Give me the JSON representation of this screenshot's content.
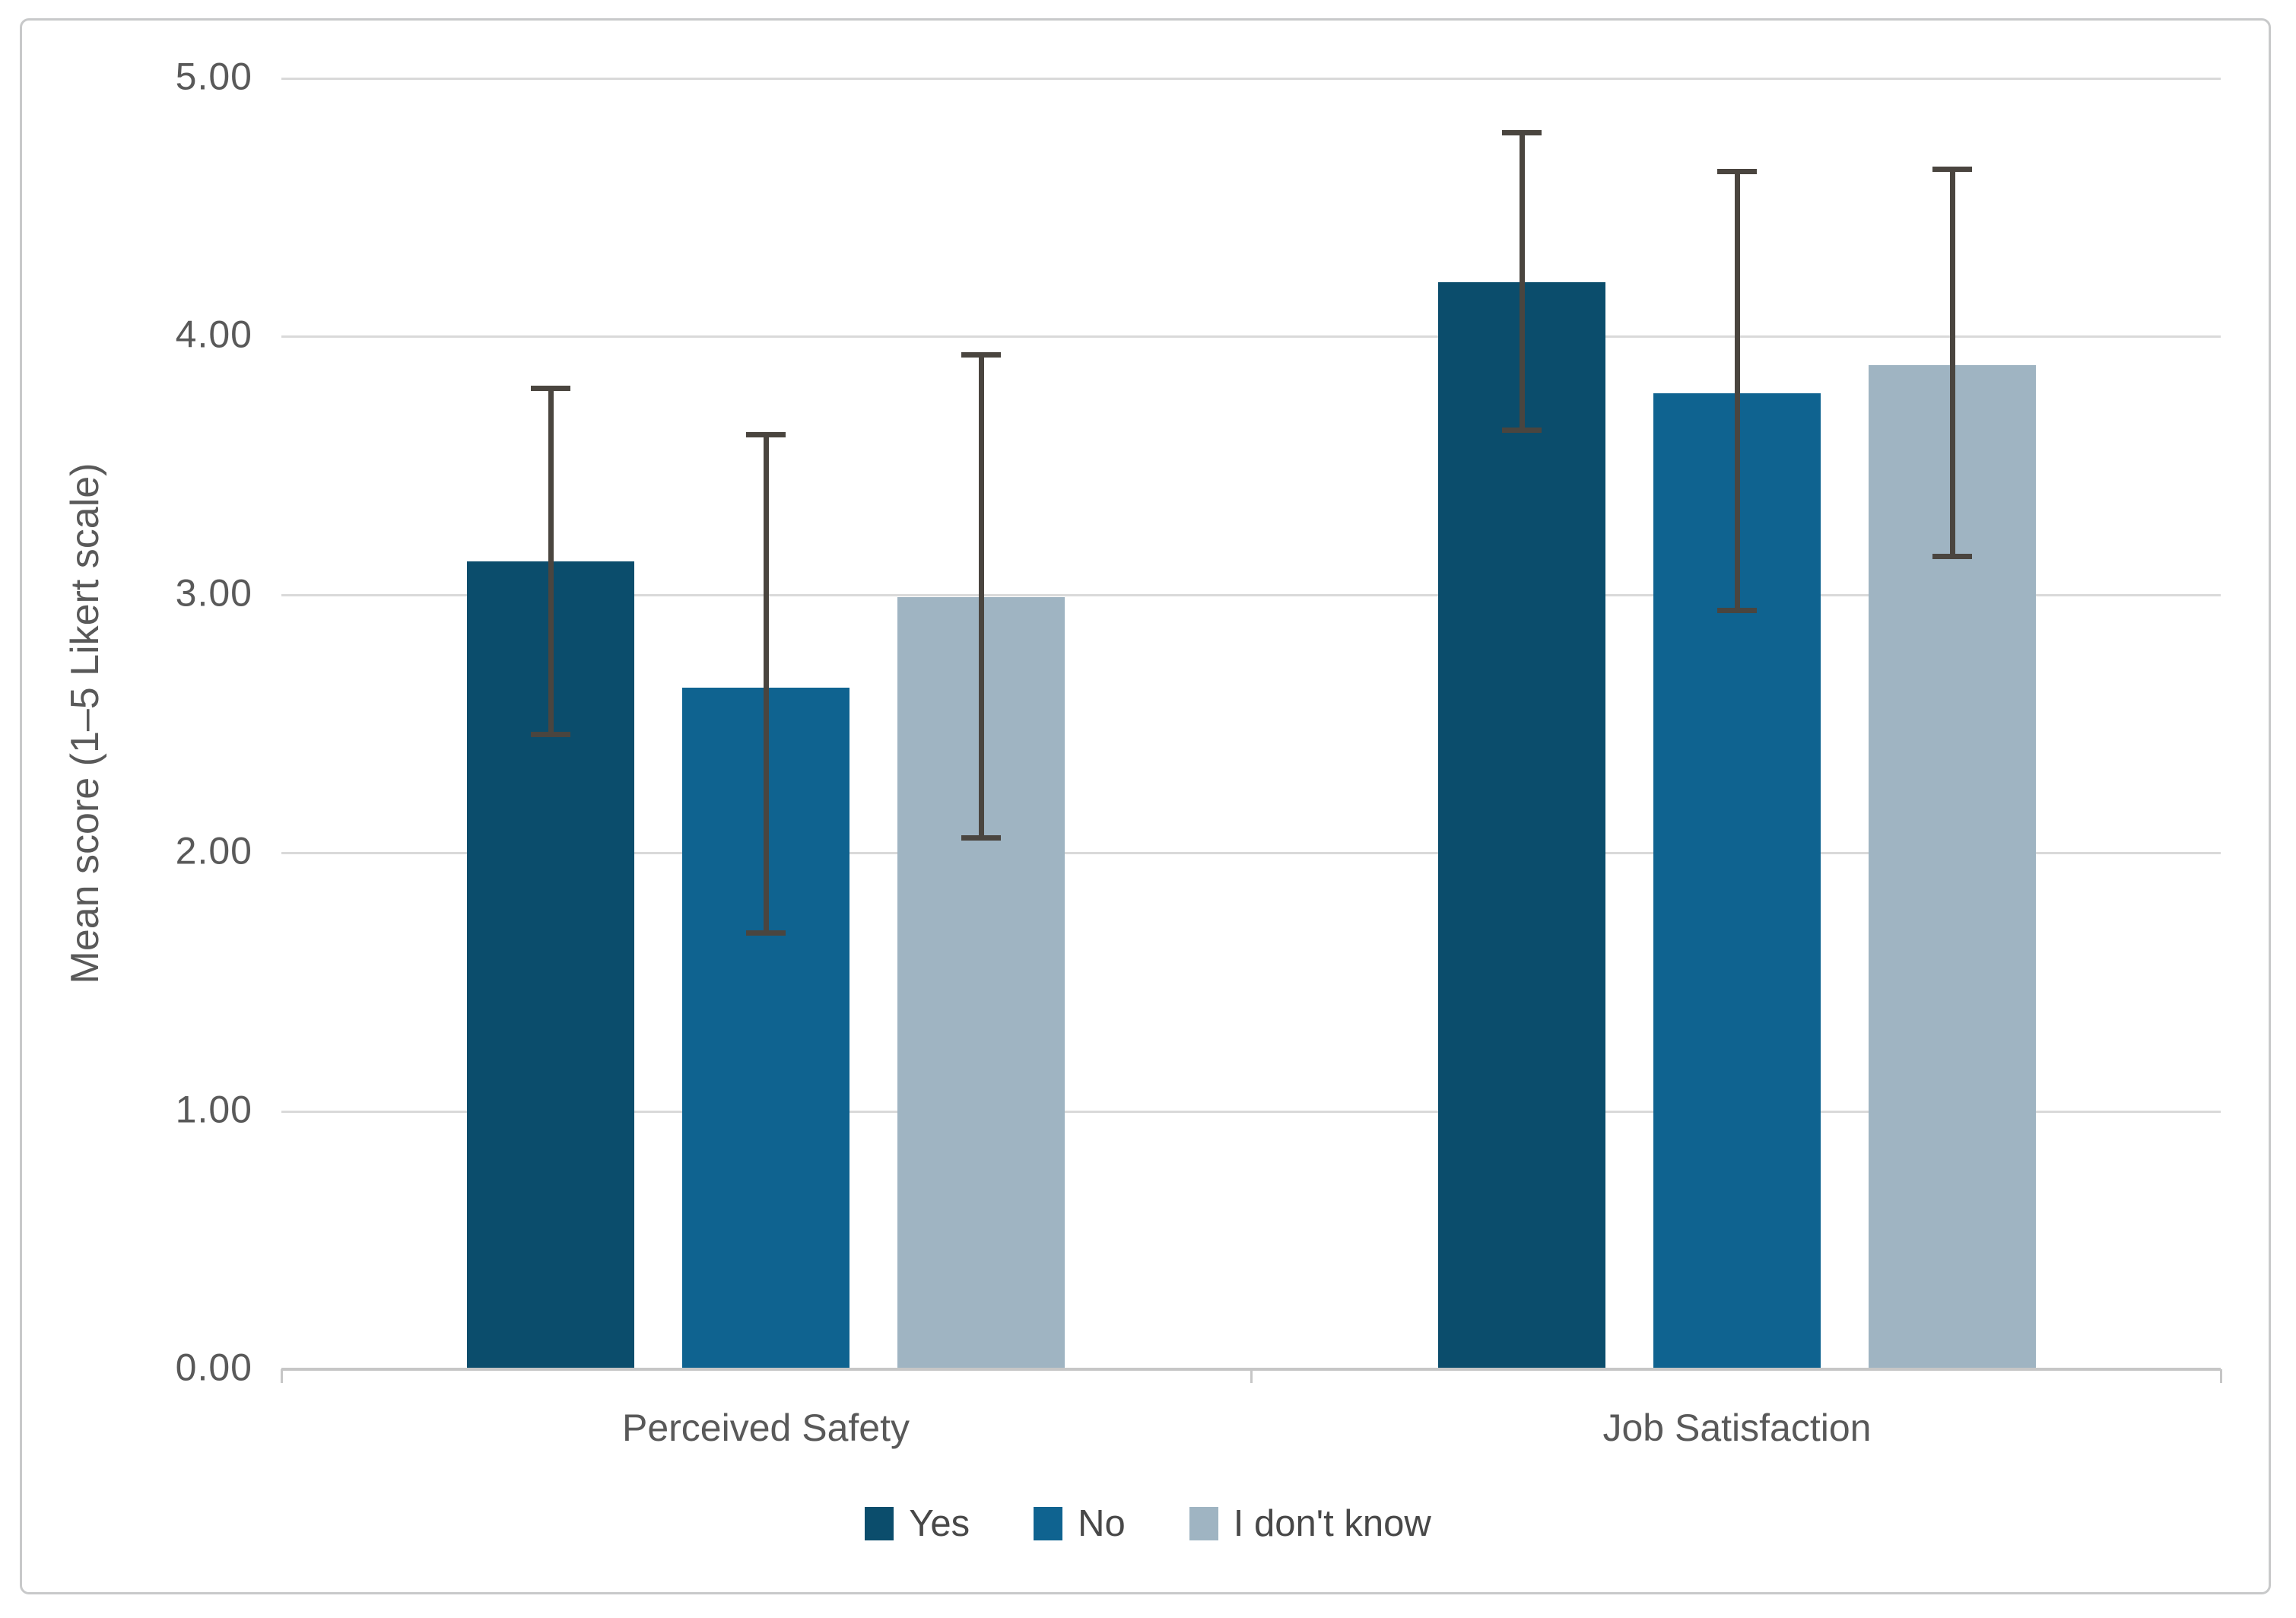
{
  "chart_data": {
    "type": "bar",
    "title": "",
    "xlabel": "",
    "ylabel": "Mean score (1–5 Likert scale)",
    "categories": [
      "Perceived Safety",
      "Job Satisfaction"
    ],
    "series": [
      {
        "name": "Yes",
        "color": "#0b4d6c",
        "values": [
          3.13,
          4.21
        ],
        "error_upper": [
          3.8,
          4.79
        ],
        "error_lower": [
          2.46,
          3.64
        ]
      },
      {
        "name": "No",
        "color": "#0f6390",
        "values": [
          2.64,
          3.78
        ],
        "error_upper": [
          3.62,
          4.64
        ],
        "error_lower": [
          1.69,
          2.94
        ]
      },
      {
        "name": "I don't know",
        "color": "#9fb4c2",
        "values": [
          2.99,
          3.89
        ],
        "error_upper": [
          3.93,
          4.65
        ],
        "error_lower": [
          2.06,
          3.15
        ]
      }
    ],
    "ylim": [
      0,
      5
    ],
    "ytick_labels": [
      "0.00",
      "1.00",
      "2.00",
      "3.00",
      "4.00",
      "5.00"
    ],
    "grid": true,
    "legend_position": "bottom",
    "error_bars": true
  },
  "colors": {
    "background": "#ffffff",
    "gridline": "#d9d9d9",
    "axis_line": "#c6c6c6",
    "error_bar": "#4a453f",
    "axis_text": "#595959",
    "legend_text": "#484848",
    "border": "#c8c9ca"
  }
}
